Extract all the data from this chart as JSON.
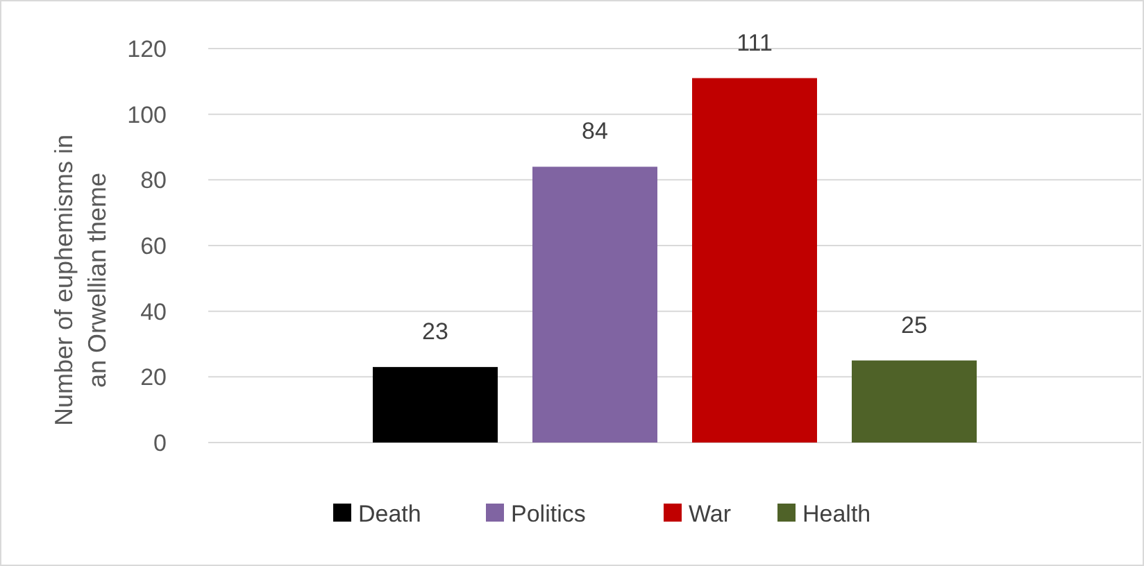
{
  "chart_data": {
    "type": "bar",
    "ylabel": "Number of euphemisms in\nan Orwellian theme",
    "categories": [
      null
    ],
    "series": [
      {
        "name": "Death",
        "color": "#000000",
        "values": [
          23
        ]
      },
      {
        "name": "Politics",
        "color": "#8064a2",
        "values": [
          84
        ]
      },
      {
        "name": "War",
        "color": "#c00000",
        "values": [
          111
        ]
      },
      {
        "name": "Health",
        "color": "#4f6228",
        "values": [
          25
        ]
      }
    ],
    "ylim": [
      0,
      120
    ],
    "yticks": [
      0,
      20,
      40,
      60,
      80,
      100,
      120
    ],
    "grid": "y",
    "legend": "bottom",
    "data_labels": true
  }
}
